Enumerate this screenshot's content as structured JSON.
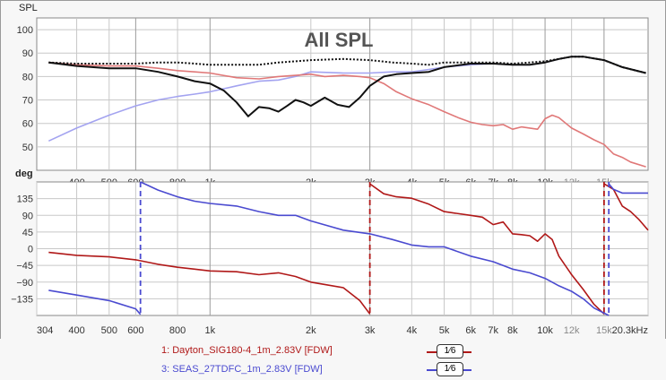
{
  "colors": {
    "dayton": "#b01818",
    "seas": "#4a4ad0",
    "total": "#111111",
    "dayton_spl": "#e07878",
    "seas_spl": "#a3a3f0",
    "grid": "#c8c8c8",
    "grid_strong": "#9a9a9a"
  },
  "legend": {
    "entries": [
      {
        "label": "1: Dayton_SIG180-4_1m_2.83V [FDW]",
        "smoothing": "1⁄6"
      },
      {
        "label": "3: SEAS_27TDFC_1m_2.83V [FDW]",
        "smoothing": "1⁄6"
      }
    ]
  },
  "chart_data": [
    {
      "type": "line",
      "title": "All SPL",
      "ylabel": "SPL",
      "xscale": "log",
      "xlim": [
        304,
        20300
      ],
      "ylim": [
        40,
        105
      ],
      "yticks": [
        50,
        60,
        70,
        80,
        90,
        100
      ],
      "xtick_labels": [
        "400",
        "500",
        "600",
        "800",
        "1k",
        "2k",
        "3k",
        "4k",
        "5k",
        "6k",
        "7k",
        "8k",
        "10k",
        "12k",
        "15k"
      ],
      "xtick_values": [
        400,
        500,
        600,
        800,
        1000,
        2000,
        3000,
        4000,
        5000,
        6000,
        7000,
        8000,
        10000,
        12000,
        15000
      ],
      "series": [
        {
          "name": "SEAS SPL",
          "color_key": "seas_spl",
          "style": "solid",
          "points": [
            [
              330,
              52.5
            ],
            [
              400,
              58
            ],
            [
              500,
              63.5
            ],
            [
              600,
              67.5
            ],
            [
              700,
              70
            ],
            [
              800,
              71.5
            ],
            [
              900,
              72.5
            ],
            [
              1000,
              73.5
            ],
            [
              1200,
              76
            ],
            [
              1400,
              78
            ],
            [
              1600,
              78.5
            ],
            [
              1800,
              80
            ],
            [
              2000,
              82
            ],
            [
              2500,
              81.5
            ],
            [
              3000,
              81.5
            ],
            [
              3500,
              82
            ],
            [
              4000,
              82
            ],
            [
              4500,
              83
            ],
            [
              5000,
              84
            ],
            [
              6000,
              85
            ],
            [
              7000,
              85.5
            ],
            [
              8000,
              85
            ],
            [
              9000,
              85
            ],
            [
              10000,
              86
            ],
            [
              11000,
              87.5
            ],
            [
              12000,
              88.5
            ],
            [
              13000,
              88.5
            ],
            [
              15000,
              87
            ],
            [
              17000,
              84
            ],
            [
              20000,
              81.5
            ]
          ]
        },
        {
          "name": "Dayton SPL",
          "color_key": "dayton_spl",
          "style": "solid",
          "points": [
            [
              330,
              86
            ],
            [
              400,
              85
            ],
            [
              500,
              84.5
            ],
            [
              600,
              84.5
            ],
            [
              700,
              83.5
            ],
            [
              800,
              82.5
            ],
            [
              900,
              82
            ],
            [
              1000,
              81.5
            ],
            [
              1200,
              79.5
            ],
            [
              1400,
              79
            ],
            [
              1600,
              80
            ],
            [
              1800,
              80.5
            ],
            [
              2000,
              81
            ],
            [
              2200,
              80
            ],
            [
              2500,
              80.5
            ],
            [
              2800,
              80
            ],
            [
              3000,
              79.5
            ],
            [
              3300,
              77
            ],
            [
              3600,
              73.5
            ],
            [
              4000,
              70.5
            ],
            [
              4500,
              68
            ],
            [
              5000,
              65
            ],
            [
              5500,
              62.5
            ],
            [
              6000,
              60.5
            ],
            [
              6500,
              59.5
            ],
            [
              7000,
              59
            ],
            [
              7500,
              59.5
            ],
            [
              8000,
              57.5
            ],
            [
              8500,
              58.5
            ],
            [
              9000,
              58
            ],
            [
              9500,
              57.5
            ],
            [
              10000,
              62
            ],
            [
              10500,
              63.5
            ],
            [
              11000,
              62.5
            ],
            [
              12000,
              58
            ],
            [
              13000,
              55.5
            ],
            [
              14000,
              53
            ],
            [
              15000,
              51
            ],
            [
              16000,
              47
            ],
            [
              17000,
              45.5
            ],
            [
              18000,
              43.5
            ],
            [
              20000,
              41.5
            ]
          ]
        },
        {
          "name": "Total SPL",
          "color_key": "total",
          "style": "solid",
          "points": [
            [
              330,
              86
            ],
            [
              400,
              84.5
            ],
            [
              500,
              83.5
            ],
            [
              600,
              83.5
            ],
            [
              700,
              82
            ],
            [
              800,
              80
            ],
            [
              900,
              78
            ],
            [
              1000,
              77
            ],
            [
              1100,
              74
            ],
            [
              1200,
              69
            ],
            [
              1300,
              63
            ],
            [
              1400,
              67
            ],
            [
              1500,
              66.5
            ],
            [
              1600,
              65
            ],
            [
              1700,
              67.5
            ],
            [
              1800,
              70
            ],
            [
              1900,
              69
            ],
            [
              2000,
              67.5
            ],
            [
              2200,
              71
            ],
            [
              2400,
              68
            ],
            [
              2600,
              67
            ],
            [
              2800,
              71
            ],
            [
              3000,
              76
            ],
            [
              3300,
              80
            ],
            [
              3600,
              81
            ],
            [
              4000,
              81.5
            ],
            [
              4500,
              82
            ],
            [
              5000,
              84
            ],
            [
              6000,
              85.5
            ],
            [
              7000,
              85.5
            ],
            [
              8000,
              85
            ],
            [
              9000,
              85
            ],
            [
              10000,
              86
            ],
            [
              11000,
              87.5
            ],
            [
              12000,
              88.5
            ],
            [
              13000,
              88.5
            ],
            [
              15000,
              87
            ],
            [
              17000,
              84
            ],
            [
              20000,
              81.5
            ]
          ]
        },
        {
          "name": "Power sum",
          "color_key": "total",
          "style": "dotted",
          "points": [
            [
              330,
              86
            ],
            [
              400,
              85.5
            ],
            [
              500,
              85.5
            ],
            [
              600,
              85.5
            ],
            [
              700,
              86
            ],
            [
              800,
              86
            ],
            [
              900,
              85.5
            ],
            [
              1000,
              85
            ],
            [
              1200,
              85
            ],
            [
              1400,
              85
            ],
            [
              1600,
              86
            ],
            [
              1800,
              86.5
            ],
            [
              2000,
              87
            ],
            [
              2500,
              87.5
            ],
            [
              3000,
              87
            ],
            [
              3500,
              86
            ],
            [
              4000,
              85.5
            ],
            [
              4500,
              85
            ],
            [
              5000,
              86
            ],
            [
              6000,
              86
            ],
            [
              7000,
              86
            ],
            [
              8000,
              85.5
            ],
            [
              9000,
              86
            ],
            [
              10000,
              86.5
            ],
            [
              11000,
              87.5
            ],
            [
              12000,
              88.5
            ],
            [
              13000,
              88.5
            ],
            [
              15000,
              87
            ],
            [
              17000,
              84
            ],
            [
              20000,
              81.5
            ]
          ]
        }
      ]
    },
    {
      "type": "line",
      "title": "",
      "ylabel": "deg",
      "xscale": "log",
      "xlim": [
        304,
        20300
      ],
      "ylim": [
        -180,
        180
      ],
      "yticks": [
        135,
        90,
        45,
        0,
        -45,
        -90,
        -135
      ],
      "xtick_labels": [
        "304",
        "400",
        "500",
        "600",
        "800",
        "1k",
        "2k",
        "3k",
        "4k",
        "5k",
        "6k",
        "7k",
        "8k",
        "10k",
        "12k",
        "15k",
        "20.3kHz"
      ],
      "xtick_values": [
        304,
        400,
        500,
        600,
        800,
        1000,
        2000,
        3000,
        4000,
        5000,
        6000,
        7000,
        8000,
        10000,
        12000,
        15000,
        20300
      ],
      "series": [
        {
          "name": "Dayton phase",
          "color_key": "dayton",
          "style": "solid",
          "segments": [
            [
              [
                330,
                -10
              ],
              [
                400,
                -18
              ],
              [
                500,
                -22
              ],
              [
                600,
                -30
              ],
              [
                700,
                -42
              ],
              [
                800,
                -50
              ],
              [
                900,
                -55
              ],
              [
                1000,
                -60
              ],
              [
                1200,
                -62
              ],
              [
                1400,
                -70
              ],
              [
                1600,
                -65
              ],
              [
                1800,
                -75
              ],
              [
                2000,
                -90
              ],
              [
                2500,
                -105
              ],
              [
                2800,
                -140
              ],
              [
                3000,
                -176
              ]
            ],
            [
              [
                3000,
                175
              ],
              [
                3300,
                148
              ],
              [
                3600,
                140
              ],
              [
                4000,
                136
              ],
              [
                4500,
                120
              ],
              [
                5000,
                100
              ],
              [
                6000,
                90
              ],
              [
                6500,
                85
              ],
              [
                7000,
                65
              ],
              [
                7500,
                72
              ],
              [
                8000,
                40
              ],
              [
                8500,
                38
              ],
              [
                9000,
                35
              ],
              [
                9500,
                20
              ],
              [
                10000,
                40
              ],
              [
                10500,
                25
              ],
              [
                11000,
                -20
              ],
              [
                12000,
                -70
              ],
              [
                13000,
                -110
              ],
              [
                14000,
                -150
              ],
              [
                15000,
                -176
              ]
            ],
            [
              [
                15000,
                175
              ],
              [
                16000,
                160
              ],
              [
                17000,
                115
              ],
              [
                18000,
                100
              ],
              [
                19000,
                80
              ],
              [
                20300,
                50
              ]
            ]
          ],
          "wrap_lines": [
            3000,
            15000
          ]
        },
        {
          "name": "SEAS phase",
          "color_key": "seas",
          "style": "solid",
          "segments": [
            [
              [
                330,
                -112
              ],
              [
                400,
                -125
              ],
              [
                500,
                -140
              ],
              [
                600,
                -162
              ],
              [
                620,
                -177
              ]
            ],
            [
              [
                620,
                180
              ],
              [
                700,
                158
              ],
              [
                800,
                140
              ],
              [
                900,
                128
              ],
              [
                1000,
                122
              ],
              [
                1200,
                115
              ],
              [
                1400,
                100
              ],
              [
                1600,
                90
              ],
              [
                1800,
                90
              ],
              [
                2000,
                75
              ],
              [
                2500,
                50
              ],
              [
                3000,
                40
              ],
              [
                3500,
                25
              ],
              [
                4000,
                10
              ],
              [
                4500,
                5
              ],
              [
                5000,
                5
              ],
              [
                6000,
                -20
              ],
              [
                7000,
                -35
              ],
              [
                8000,
                -55
              ],
              [
                9000,
                -65
              ],
              [
                10000,
                -80
              ],
              [
                11000,
                -100
              ],
              [
                12000,
                -115
              ],
              [
                13000,
                -135
              ],
              [
                14000,
                -160
              ],
              [
                15500,
                -180
              ]
            ],
            [
              [
                15500,
                175
              ],
              [
                16000,
                160
              ],
              [
                17000,
                150
              ],
              [
                18000,
                150
              ],
              [
                20300,
                150
              ]
            ]
          ],
          "wrap_lines": [
            620,
            15500
          ]
        }
      ]
    }
  ]
}
